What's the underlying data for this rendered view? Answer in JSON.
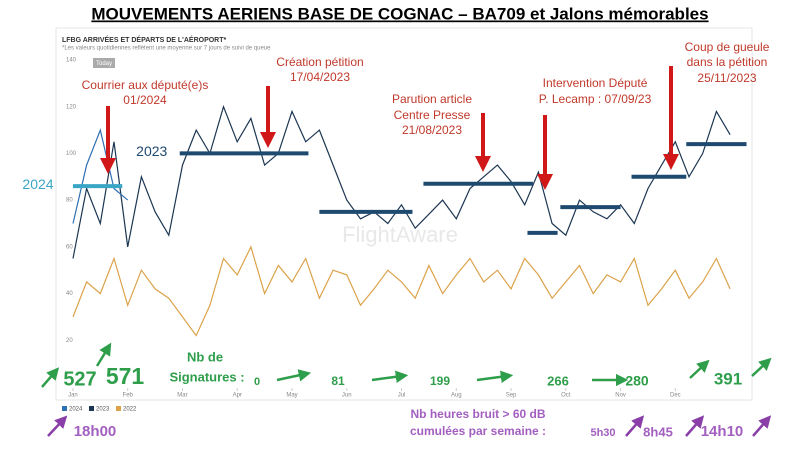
{
  "chart_data": {
    "type": "line",
    "title": "MOUVEMENTS AERIENS BASE DE COGNAC – BA709 et Jalons mémorables",
    "chart_header": "LFBG ARRIVÉES ET DÉPARTS DE L'AÉROPORT*",
    "chart_note": "*Les valeurs quotidiennes reflètent une moyenne sur 7 jours de suivi de queue",
    "today_badge": "Today",
    "watermark": "FlightAware",
    "x": [
      0,
      0.25,
      0.5,
      0.75,
      1,
      1.25,
      1.5,
      1.75,
      2,
      2.25,
      2.5,
      2.75,
      3,
      3.25,
      3.5,
      3.75,
      4,
      4.25,
      4.5,
      4.75,
      5,
      5.25,
      5.5,
      5.75,
      6,
      6.25,
      6.5,
      6.75,
      7,
      7.25,
      7.5,
      7.75,
      8,
      8.25,
      8.5,
      8.75,
      9,
      9.25,
      9.5,
      9.75,
      10,
      10.25,
      10.5,
      10.75,
      11,
      11.25,
      11.5,
      11.75,
      12
    ],
    "xlim": [
      -0.2,
      12.4
    ],
    "xticks": [
      {
        "value": 0,
        "label": "Jan"
      },
      {
        "value": 1,
        "label": "Feb"
      },
      {
        "value": 2,
        "label": "Mar"
      },
      {
        "value": 3,
        "label": "Apr"
      },
      {
        "value": 4,
        "label": "May"
      },
      {
        "value": 5,
        "label": "Jun"
      },
      {
        "value": 6,
        "label": "Jul"
      },
      {
        "value": 7,
        "label": "Aug"
      },
      {
        "value": 8,
        "label": "Sep"
      },
      {
        "value": 9,
        "label": "Oct"
      },
      {
        "value": 10,
        "label": "Nov"
      },
      {
        "value": 11,
        "label": "Dec"
      }
    ],
    "ylim": [
      0,
      140
    ],
    "yticks": [
      20,
      40,
      60,
      80,
      100,
      120,
      140
    ],
    "grid": false,
    "series": [
      {
        "name": "2024",
        "color": "#2f6fb3",
        "x": [
          0,
          0.25,
          0.5,
          0.75,
          1
        ],
        "values": [
          70,
          95,
          110,
          85,
          80
        ]
      },
      {
        "name": "2023",
        "color": "#1c3652",
        "values": [
          55,
          85,
          70,
          105,
          60,
          90,
          75,
          65,
          95,
          110,
          100,
          120,
          105,
          115,
          95,
          100,
          118,
          105,
          110,
          95,
          80,
          72,
          75,
          70,
          78,
          68,
          74,
          80,
          72,
          85,
          90,
          95,
          88,
          78,
          92,
          70,
          65,
          80,
          75,
          72,
          78,
          70,
          85,
          95,
          105,
          90,
          100,
          118,
          108
        ]
      },
      {
        "name": "2022",
        "color": "#dba24a",
        "values": [
          30,
          45,
          40,
          55,
          35,
          50,
          42,
          38,
          30,
          22,
          35,
          55,
          48,
          60,
          40,
          52,
          45,
          55,
          38,
          50,
          48,
          35,
          42,
          50,
          45,
          38,
          52,
          40,
          48,
          55,
          45,
          50,
          42,
          55,
          48,
          38,
          45,
          52,
          40,
          48,
          45,
          55,
          35,
          42,
          50,
          38,
          45,
          55,
          42
        ]
      }
    ],
    "periods": [
      {
        "x": [
          0,
          0.9
        ],
        "value": 86,
        "color": "#3aa6c6",
        "label": "2024"
      },
      {
        "x": [
          1.95,
          4.3
        ],
        "value": 100,
        "color": "#1f4a70",
        "label": "2023"
      },
      {
        "x": [
          4.5,
          6.2
        ],
        "value": 75,
        "color": "#1f4a70"
      },
      {
        "x": [
          6.4,
          8.4
        ],
        "value": 87,
        "color": "#1f4a70"
      },
      {
        "x": [
          8.3,
          8.85
        ],
        "value": 66,
        "color": "#1f4a70"
      },
      {
        "x": [
          8.9,
          10.0
        ],
        "value": 77,
        "color": "#1f4a70"
      },
      {
        "x": [
          10.2,
          11.2
        ],
        "value": 90,
        "color": "#1f4a70"
      },
      {
        "x": [
          11.2,
          12.3
        ],
        "value": 104,
        "color": "#1f4a70"
      }
    ],
    "annotations": [
      [
        "Courrier aux député(e)s",
        "01/2024"
      ],
      [
        "Création pétition",
        "17/04/2023"
      ],
      [
        "Parution article",
        "Centre Presse",
        "21/08/2023"
      ],
      [
        "Intervention Député",
        "P. Lecamp : 07/09/23"
      ],
      [
        "Coup de gueule",
        "dans la pétition",
        "25/11/2023"
      ]
    ],
    "signatures": {
      "label": [
        "Nb de",
        "Signatures :"
      ],
      "values": [
        "527",
        "571",
        "0",
        "81",
        "199",
        "266",
        "280",
        "391"
      ]
    },
    "noise": {
      "label": [
        "Nb heures bruit > 60 dB",
        "cumulées par semaine :"
      ],
      "values": [
        "18h00",
        "5h30",
        "8h45",
        "14h10"
      ]
    }
  }
}
